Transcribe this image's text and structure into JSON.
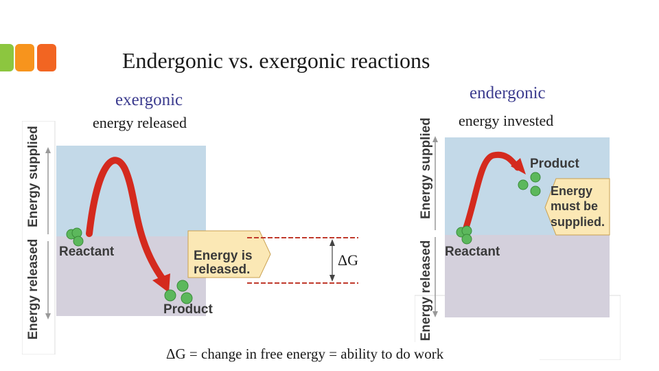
{
  "slide": {
    "title": "Endergonic vs. exergonic reactions",
    "accent_colors": [
      "#8cc63f",
      "#f7941d",
      "#f26522"
    ]
  },
  "exergonic": {
    "heading": "exergonic",
    "subheading": "energy released",
    "axis_upper": "Energy supplied",
    "axis_lower": "Energy released",
    "reactant_label": "Reactant",
    "product_label": "Product",
    "callout_line1": "Energy is",
    "callout_line2": "released."
  },
  "endergonic": {
    "heading": "endergonic",
    "subheading": "energy invested",
    "axis_upper": "Energy supplied",
    "axis_lower": "Energy released",
    "reactant_label": "Reactant",
    "product_label": "Product",
    "callout_line1": "Energy",
    "callout_line2": "must be",
    "callout_line3": "supplied."
  },
  "delta_g": {
    "symbol": "ΔG",
    "definition": "ΔG = change in free energy = ability to do work"
  },
  "colors": {
    "upper_panel": "#c3d9e8",
    "lower_panel": "#d4d0dc",
    "arrow_red": "#d42a1e",
    "callout_fill": "#fbe8b5",
    "dashed_line": "#c0392b",
    "molecule": "#5cb85c"
  }
}
